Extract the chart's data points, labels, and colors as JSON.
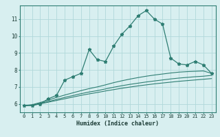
{
  "xlabel": "Humidex (Indice chaleur)",
  "ylabel": "",
  "bg_color": "#d8eff0",
  "grid_color": "#b0d8da",
  "line_color": "#2e7d72",
  "x_data": [
    0,
    1,
    2,
    3,
    4,
    5,
    6,
    7,
    8,
    9,
    10,
    11,
    12,
    13,
    14,
    15,
    16,
    17,
    18,
    19,
    20,
    21,
    22,
    23
  ],
  "line1": [
    5.9,
    5.9,
    6.0,
    6.3,
    6.5,
    7.4,
    7.6,
    7.8,
    9.2,
    8.6,
    8.5,
    9.4,
    10.1,
    10.6,
    11.2,
    11.5,
    11.0,
    10.7,
    8.7,
    8.35,
    8.3,
    8.5,
    8.3,
    7.8
  ],
  "line2": [
    5.9,
    5.95,
    6.08,
    6.22,
    6.38,
    6.52,
    6.65,
    6.78,
    6.9,
    7.0,
    7.12,
    7.25,
    7.36,
    7.46,
    7.55,
    7.63,
    7.7,
    7.76,
    7.82,
    7.87,
    7.9,
    7.92,
    7.94,
    7.8
  ],
  "line3": [
    5.9,
    5.93,
    6.03,
    6.14,
    6.26,
    6.38,
    6.49,
    6.6,
    6.7,
    6.78,
    6.88,
    6.98,
    7.07,
    7.15,
    7.22,
    7.29,
    7.35,
    7.41,
    7.47,
    7.52,
    7.56,
    7.6,
    7.63,
    7.68
  ],
  "line4": [
    5.9,
    5.92,
    6.0,
    6.1,
    6.2,
    6.3,
    6.4,
    6.5,
    6.59,
    6.67,
    6.76,
    6.84,
    6.92,
    6.99,
    7.06,
    7.12,
    7.18,
    7.23,
    7.28,
    7.33,
    7.37,
    7.41,
    7.45,
    7.49
  ],
  "ylim": [
    5.5,
    11.8
  ],
  "xlim": [
    -0.5,
    23.5
  ],
  "yticks": [
    6,
    7,
    8,
    9,
    10,
    11
  ],
  "xticks": [
    0,
    1,
    2,
    3,
    4,
    5,
    6,
    7,
    8,
    9,
    10,
    11,
    12,
    13,
    14,
    15,
    16,
    17,
    18,
    19,
    20,
    21,
    22,
    23
  ],
  "tick_fontsize": 5.0,
  "xlabel_fontsize": 6.0
}
